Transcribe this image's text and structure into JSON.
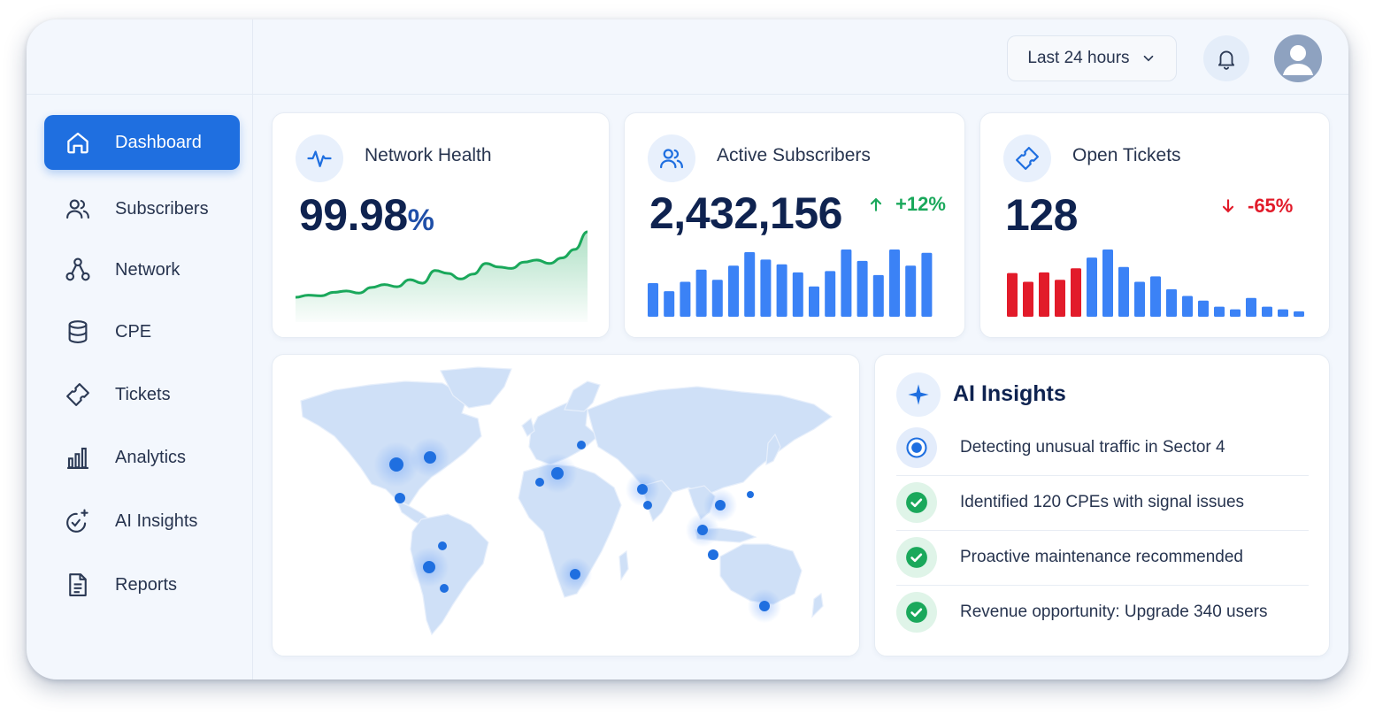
{
  "topbar": {
    "time_range": "Last 24 hours",
    "icons": {
      "dropdown": "chevron-down-icon",
      "notifications": "bell-icon",
      "profile": "user-avatar-icon"
    }
  },
  "sidebar": {
    "items": [
      {
        "label": "Dashboard",
        "icon": "home-icon",
        "active": true
      },
      {
        "label": "Subscribers",
        "icon": "users-icon",
        "active": false
      },
      {
        "label": "Network",
        "icon": "network-icon",
        "active": false
      },
      {
        "label": "CPE",
        "icon": "database-icon",
        "active": false
      },
      {
        "label": "Tickets",
        "icon": "ticket-icon",
        "active": false
      },
      {
        "label": "Analytics",
        "icon": "bar-chart-icon",
        "active": false
      },
      {
        "label": "AI Insights",
        "icon": "ai-sparkle-icon",
        "active": false
      },
      {
        "label": "Reports",
        "icon": "document-icon",
        "active": false
      }
    ]
  },
  "kpis": {
    "network_health": {
      "title": "Network Health",
      "value": "99.98",
      "unit": "%",
      "icon": "pulse-icon",
      "sparkline": [
        2,
        5,
        4,
        9,
        11,
        8,
        16,
        20,
        17,
        27,
        22,
        40,
        36,
        28,
        35,
        50,
        45,
        43,
        52,
        55,
        50,
        58,
        70,
        95
      ]
    },
    "active_subscribers": {
      "title": "Active Subscribers",
      "value": "2,432,156",
      "change": "+12%",
      "direction": "up",
      "icon": "users-icon",
      "bars": [
        50,
        38,
        52,
        70,
        55,
        76,
        96,
        85,
        78,
        66,
        45,
        68,
        100,
        83,
        62,
        100,
        76,
        95
      ]
    },
    "open_tickets": {
      "title": "Open Tickets",
      "value": "128",
      "change": "-65%",
      "direction": "down",
      "icon": "ticket-icon",
      "bars": [
        65,
        52,
        66,
        55,
        72,
        88,
        100,
        74,
        52,
        60,
        41,
        31,
        24,
        15,
        11,
        28,
        15,
        11,
        8
      ],
      "bar_colors": [
        "#e21b2a",
        "#e21b2a",
        "#e21b2a",
        "#e21b2a",
        "#e21b2a",
        "#3b82f6",
        "#3b82f6",
        "#3b82f6",
        "#3b82f6",
        "#3b82f6",
        "#3b82f6",
        "#3b82f6",
        "#3b82f6",
        "#3b82f6",
        "#3b82f6",
        "#3b82f6",
        "#3b82f6",
        "#3b82f6",
        "#3b82f6"
      ]
    }
  },
  "map": {
    "markers": [
      "north-america-west",
      "north-america-east",
      "us-south",
      "scandinavia",
      "europe-central",
      "western-europe",
      "middle-east",
      "india",
      "east-asia",
      "japan",
      "southeast-asia",
      "indonesia",
      "south-america-north",
      "south-america-west",
      "south-america-south",
      "central-africa",
      "australia"
    ]
  },
  "ai_insights": {
    "title": "AI Insights",
    "icon": "sparkle-icon",
    "items": [
      {
        "text": "Detecting unusual traffic in Sector 4",
        "status": "in-progress"
      },
      {
        "text": "Identified 120 CPEs with signal issues",
        "status": "done"
      },
      {
        "text": "Proactive maintenance recommended",
        "status": "done"
      },
      {
        "text": "Revenue opportunity: Upgrade 340 users",
        "status": "done"
      }
    ]
  },
  "colors": {
    "accent": "#1f6fe0",
    "positive": "#1aa85b",
    "negative": "#e21b2a",
    "bar_blue": "#3b82f6"
  }
}
